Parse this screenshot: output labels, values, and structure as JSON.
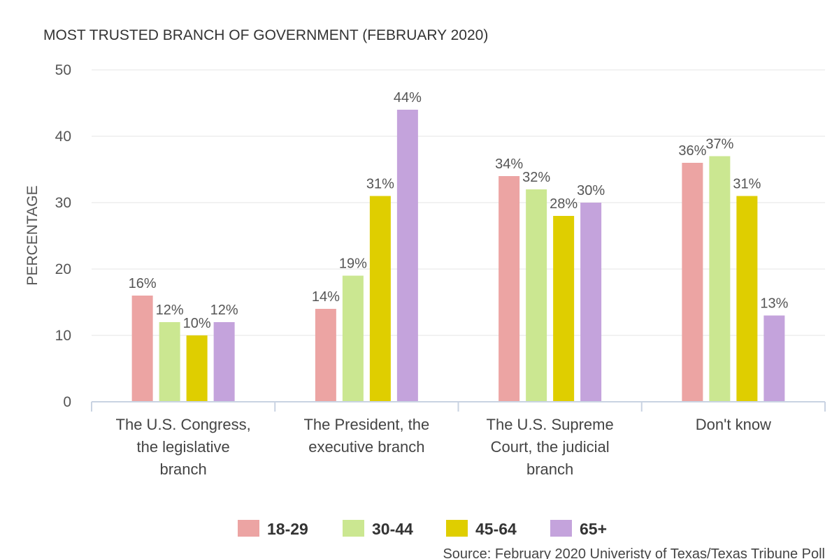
{
  "chart_data": {
    "type": "bar",
    "title": "MOST TRUSTED BRANCH OF GOVERNMENT (FEBRUARY 2020)",
    "ylabel": "PERCENTAGE",
    "xlabel": "",
    "ylim": [
      0,
      50
    ],
    "yticks": [
      "0",
      "10",
      "20",
      "30",
      "40",
      "50"
    ],
    "ytick_values": [
      0,
      10,
      20,
      30,
      40,
      50
    ],
    "grid": true,
    "legend_position": "bottom-center",
    "categories": [
      [
        "The U.S. Congress,",
        "the legislative",
        "branch"
      ],
      [
        "The President, the",
        "executive branch"
      ],
      [
        "The U.S. Supreme",
        "Court, the judicial",
        "branch"
      ],
      [
        "Don't know"
      ]
    ],
    "series": [
      {
        "name": "18-29",
        "color": "#eca4a3",
        "values": [
          16,
          14,
          34,
          36
        ],
        "labels": [
          "16%",
          "14%",
          "34%",
          "36%"
        ]
      },
      {
        "name": "30-44",
        "color": "#cbe791",
        "values": [
          12,
          19,
          32,
          37
        ],
        "labels": [
          "12%",
          "19%",
          "32%",
          "37%"
        ]
      },
      {
        "name": "45-64",
        "color": "#dfce00",
        "values": [
          10,
          31,
          28,
          31
        ],
        "labels": [
          "10%",
          "31%",
          "28%",
          "31%"
        ]
      },
      {
        "name": "65+",
        "color": "#c4a3dc",
        "values": [
          12,
          44,
          30,
          13
        ],
        "labels": [
          "12%",
          "44%",
          "30%",
          "13%"
        ]
      }
    ],
    "source": "Source: February 2020 Univeristy of Texas/Texas Tribune Poll"
  }
}
